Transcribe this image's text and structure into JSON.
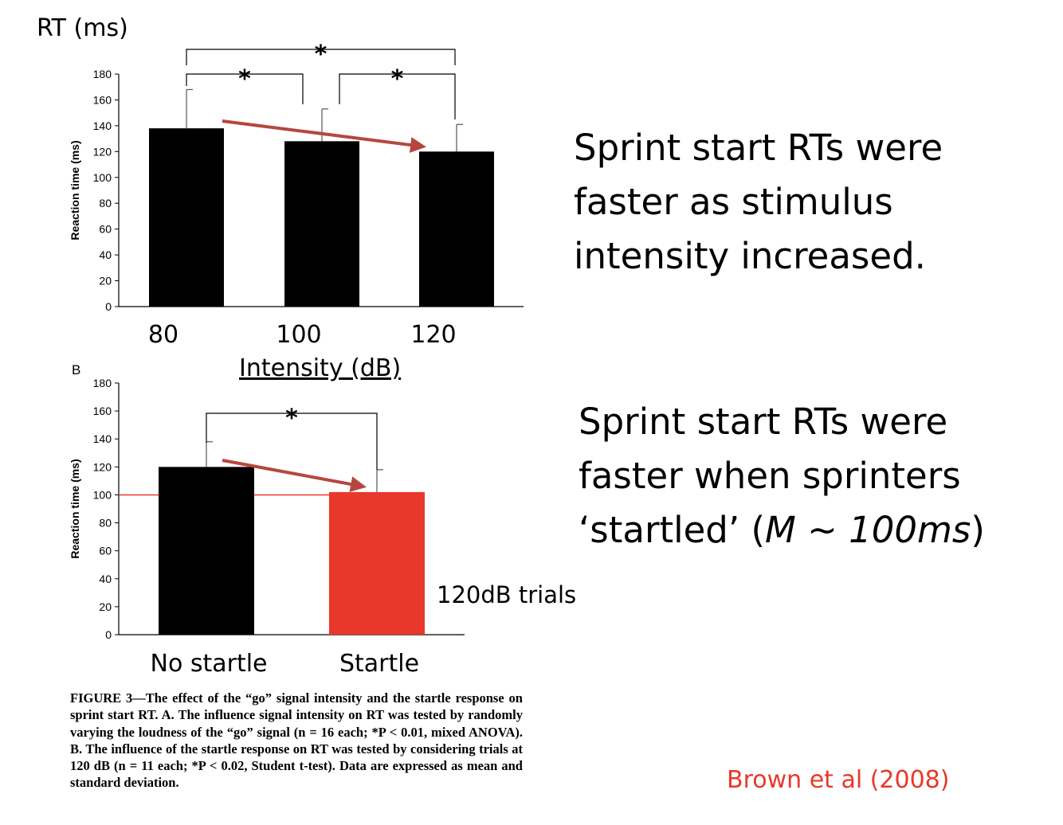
{
  "panel_a": {
    "y_unit_label": "RT (ms)",
    "x_title": "Intensity (dB)"
  },
  "panel_b": {
    "panel_label": "B",
    "note": "120dB trials"
  },
  "takeaways": {
    "first": "Sprint start RTs were faster as stimulus intensity increased.",
    "second_main": "Sprint start RTs were faster when sprinters ‘startled’ (",
    "second_italic": "M ~ 100ms",
    "second_end": ")"
  },
  "caption": "FIGURE 3—The effect of the “go” signal intensity and the startle response on sprint start RT. A. The influence signal intensity on RT was tested by randomly varying the loudness of the “go” signal (n = 16 each; *P < 0.01, mixed ANOVA). B. The influence of the startle response on RT was tested by considering trials at 120 dB (n = 11 each; *P < 0.02, Student t-test). Data are expressed as mean and standard deviation.",
  "citation": "Brown et al (2008)",
  "colors": {
    "bar": "#000000",
    "highlight": "#e8382b",
    "arrow": "#b5473f"
  },
  "chart_data": [
    {
      "type": "bar",
      "panel": "A",
      "categories": [
        "80",
        "100",
        "120"
      ],
      "values": [
        138,
        128,
        120
      ],
      "error": [
        30,
        25,
        21
      ],
      "ylabel": "Reaction time (ms)",
      "xlabel": "Intensity (dB)",
      "ylim": [
        0,
        180
      ],
      "yticks": [
        0,
        20,
        40,
        60,
        80,
        100,
        120,
        140,
        160,
        180
      ],
      "significance": [
        {
          "from": 0,
          "to": 1,
          "label": "*"
        },
        {
          "from": 1,
          "to": 2,
          "label": "*"
        },
        {
          "from": 0,
          "to": 2,
          "label": "*"
        }
      ],
      "trend_arrow": {
        "from": 0,
        "to": 2
      }
    },
    {
      "type": "bar",
      "panel": "B",
      "categories": [
        "No startle",
        "Startle"
      ],
      "values": [
        120,
        102
      ],
      "error": [
        18,
        16
      ],
      "ylabel": "Reaction time (ms)",
      "ylim": [
        0,
        180
      ],
      "yticks": [
        0,
        20,
        40,
        60,
        80,
        100,
        120,
        140,
        160,
        180
      ],
      "reference_line": 100,
      "significance": [
        {
          "from": 0,
          "to": 1,
          "label": "*"
        }
      ],
      "trend_arrow": {
        "from": 0,
        "to": 1
      }
    }
  ]
}
